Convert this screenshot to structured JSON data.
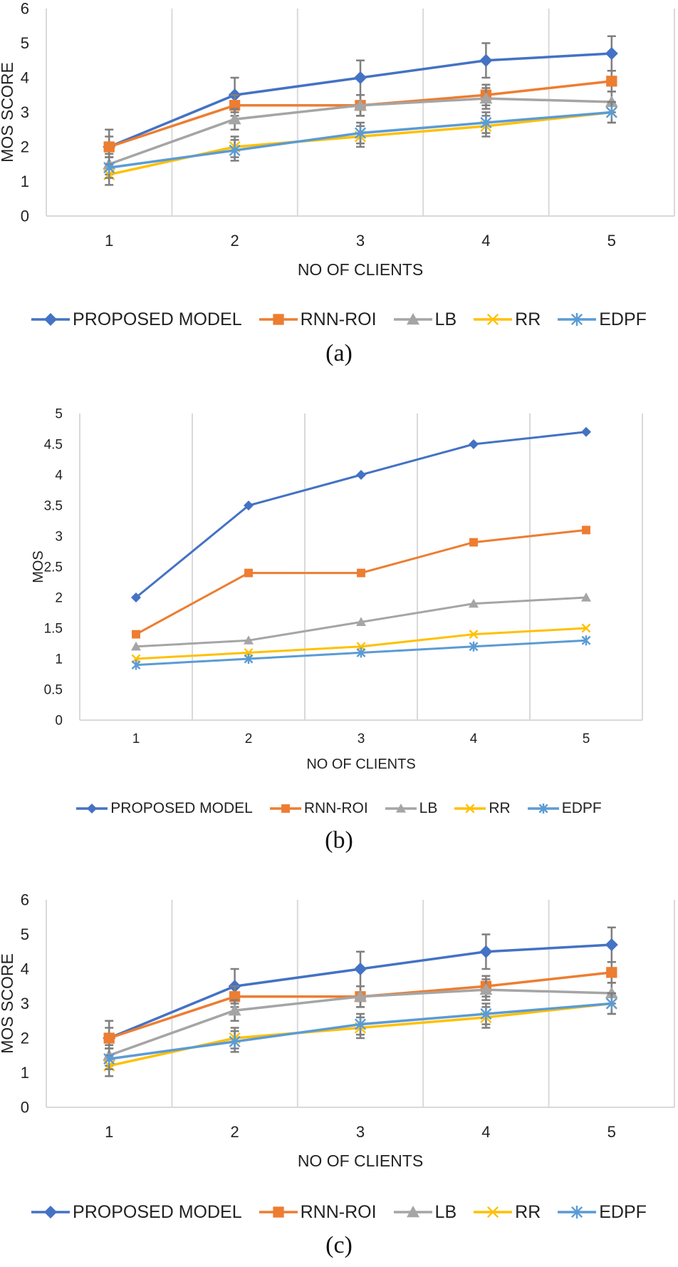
{
  "colors": {
    "proposed": "#4472C4",
    "rnn": "#ED7D31",
    "lb": "#A5A5A5",
    "rr": "#FFC000",
    "edpf": "#5B9BD5",
    "grid": "#D9D9D9",
    "error_bar": "#7F7F7F"
  },
  "chart_data": [
    {
      "type": "line",
      "caption": "(a)",
      "xlabel": "NO OF CLIENTS",
      "ylabel": "MOS SCORE",
      "categories": [
        "1",
        "2",
        "3",
        "4",
        "5"
      ],
      "ylim": [
        0,
        6
      ],
      "yticks": [
        "0",
        "1",
        "2",
        "3",
        "4",
        "5",
        "6"
      ],
      "error_bars": true,
      "series": [
        {
          "name": "PROPOSED MODEL",
          "marker": "diamond",
          "values": [
            2,
            3.5,
            4,
            4.5,
            4.7
          ],
          "errors": [
            0.5,
            0.5,
            0.5,
            0.5,
            0.5
          ]
        },
        {
          "name": "RNN-ROI",
          "marker": "square",
          "values": [
            2,
            3.2,
            3.2,
            3.5,
            3.9
          ],
          "errors": [
            0.3,
            0.3,
            0.3,
            0.3,
            0.3
          ]
        },
        {
          "name": "LB",
          "marker": "triangle",
          "values": [
            1.5,
            2.8,
            3.2,
            3.4,
            3.3
          ],
          "errors": [
            0.3,
            0.3,
            0.3,
            0.3,
            0.3
          ]
        },
        {
          "name": "RR",
          "marker": "x",
          "values": [
            1.2,
            2,
            2.3,
            2.6,
            3
          ],
          "errors": [
            0.3,
            0.3,
            0.3,
            0.3,
            0.3
          ]
        },
        {
          "name": "EDPF",
          "marker": "star",
          "values": [
            1.4,
            1.9,
            2.4,
            2.7,
            3
          ],
          "errors": [
            0.3,
            0.3,
            0.3,
            0.3,
            0.3
          ]
        }
      ]
    },
    {
      "type": "line",
      "caption": "(b)",
      "xlabel": "NO OF CLIENTS",
      "ylabel": "MOS",
      "categories": [
        "1",
        "2",
        "3",
        "4",
        "5"
      ],
      "ylim": [
        0,
        5
      ],
      "yticks": [
        "0",
        "0.5",
        "1",
        "1.5",
        "2",
        "2.5",
        "3",
        "3.5",
        "4",
        "4.5",
        "5"
      ],
      "error_bars": false,
      "series": [
        {
          "name": "PROPOSED MODEL",
          "marker": "diamond",
          "values": [
            2,
            3.5,
            4,
            4.5,
            4.7
          ]
        },
        {
          "name": "RNN-ROI",
          "marker": "square",
          "values": [
            1.4,
            2.4,
            2.4,
            2.9,
            3.1
          ]
        },
        {
          "name": "LB",
          "marker": "triangle",
          "values": [
            1.2,
            1.3,
            1.6,
            1.9,
            2
          ]
        },
        {
          "name": "RR",
          "marker": "x",
          "values": [
            1,
            1.1,
            1.2,
            1.4,
            1.5
          ]
        },
        {
          "name": "EDPF",
          "marker": "star",
          "values": [
            0.9,
            1,
            1.1,
            1.2,
            1.3
          ]
        }
      ]
    },
    {
      "type": "line",
      "caption": "(c)",
      "xlabel": "NO OF CLIENTS",
      "ylabel": "MOS SCORE",
      "categories": [
        "1",
        "2",
        "3",
        "4",
        "5"
      ],
      "ylim": [
        0,
        6
      ],
      "yticks": [
        "0",
        "1",
        "2",
        "3",
        "4",
        "5",
        "6"
      ],
      "error_bars": true,
      "series": [
        {
          "name": "PROPOSED MODEL",
          "marker": "diamond",
          "values": [
            2,
            3.5,
            4,
            4.5,
            4.7
          ],
          "errors": [
            0.5,
            0.5,
            0.5,
            0.5,
            0.5
          ]
        },
        {
          "name": "RNN-ROI",
          "marker": "square",
          "values": [
            2,
            3.2,
            3.2,
            3.5,
            3.9
          ],
          "errors": [
            0.3,
            0.3,
            0.3,
            0.3,
            0.3
          ]
        },
        {
          "name": "LB",
          "marker": "triangle",
          "values": [
            1.5,
            2.8,
            3.2,
            3.4,
            3.3
          ],
          "errors": [
            0.3,
            0.3,
            0.3,
            0.3,
            0.3
          ]
        },
        {
          "name": "RR",
          "marker": "x",
          "values": [
            1.2,
            2,
            2.3,
            2.6,
            3
          ],
          "errors": [
            0.3,
            0.3,
            0.3,
            0.3,
            0.3
          ]
        },
        {
          "name": "EDPF",
          "marker": "star",
          "values": [
            1.4,
            1.9,
            2.4,
            2.7,
            3
          ],
          "errors": [
            0.3,
            0.3,
            0.3,
            0.3,
            0.3
          ]
        }
      ]
    }
  ]
}
